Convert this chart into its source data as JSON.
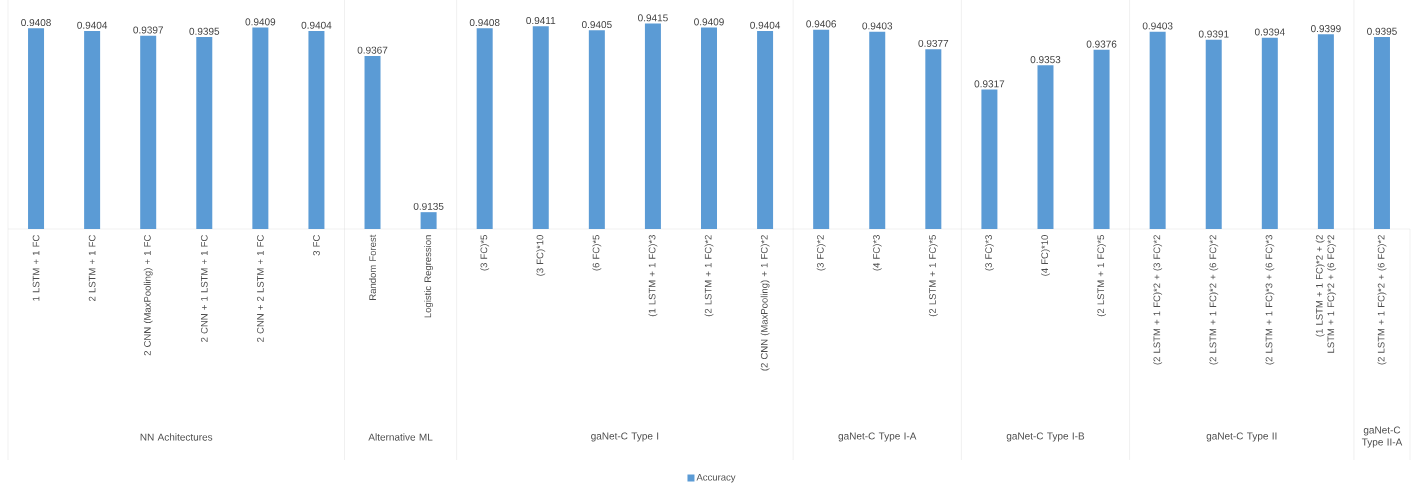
{
  "chart_data": [
    {
      "type": "bar",
      "xlabel": "NN Achitectures",
      "categories": [
        "1 LSTM + 1 FC",
        "2 LSTM + 1 FC",
        "2 CNN (MaxPooling) + 1 FC",
        "2 CNN + 1 LSTM + 1 FC",
        "2 CNN + 2 LSTM + 1 FC",
        "3 FC"
      ],
      "values": [
        0.9408,
        0.9404,
        0.9397,
        0.9395,
        0.9409,
        0.9404
      ],
      "color": "#5b9bd5",
      "ylim": [
        0.911,
        0.945
      ],
      "data_labels": true
    },
    {
      "type": "bar",
      "xlabel": "Alternative ML",
      "categories": [
        "Random Forest",
        "Logistic Regression"
      ],
      "values": [
        0.9367,
        0.9135
      ],
      "color": "#5b9bd5",
      "ylim": [
        0.911,
        0.945
      ],
      "data_labels": true
    },
    {
      "type": "bar",
      "xlabel": "gaNet-C Type I",
      "categories": [
        "(3 FC)*5",
        "(3 FC)*10",
        "(6 FC)*5",
        "(1 LSTM + 1 FC)*3",
        "(2 LSTM + 1 FC)*2",
        "(2 CNN (MaxPooling) + 1 FC)*2"
      ],
      "series": [
        {
          "name": "Accuracy",
          "color": "#5b9bd5",
          "values": [
            0.9408,
            0.9411,
            0.9405,
            0.9415,
            0.9409,
            0.9404
          ]
        }
      ],
      "ylim": [
        0.911,
        0.945
      ],
      "data_labels": true,
      "legend": "bottom"
    },
    {
      "type": "bar",
      "xlabel": "gaNet-C Type I-A",
      "categories": [
        "(3 FC)*2",
        "(4 FC)*3",
        "(2 LSTM + 1 FC)*5"
      ],
      "values": [
        0.9406,
        0.9403,
        0.9377
      ],
      "color": "#5b9bd5",
      "ylim": [
        0.911,
        0.945
      ],
      "data_labels": true
    },
    {
      "type": "bar",
      "xlabel": "gaNet-C Type I-B",
      "categories": [
        "(3 FC)*3",
        "(4 FC)*10",
        "(2 LSTM + 1 FC)*5"
      ],
      "values": [
        0.9317,
        0.9353,
        0.9376
      ],
      "color": "#5b9bd5",
      "ylim": [
        0.911,
        0.945
      ],
      "data_labels": true
    },
    {
      "type": "bar",
      "xlabel": "gaNet-C Type II",
      "categories": [
        "(2 LSTM + 1 FC)*2 + (3 FC)*2",
        "(2 LSTM + 1 FC)*2 + (6 FC)*2",
        "(2 LSTM + 1 FC)*3 + (6 FC)*3",
        "(1 LSTM + 1 FC)*2 + (2 LSTM + 1 FC)*2 + (6 FC)*2"
      ],
      "values": [
        0.9403,
        0.9391,
        0.9394,
        0.9399
      ],
      "color": "#5b9bd5",
      "ylim": [
        0.911,
        0.945
      ],
      "data_labels": true
    },
    {
      "type": "bar",
      "xlabel": "gaNet-C Type II-A",
      "categories": [
        "(2 LSTM + 1 FC)*2 + (6 FC)*2"
      ],
      "values": [
        0.9395
      ],
      "color": "#5b9bd5",
      "data_labels": true
    }
  ]
}
